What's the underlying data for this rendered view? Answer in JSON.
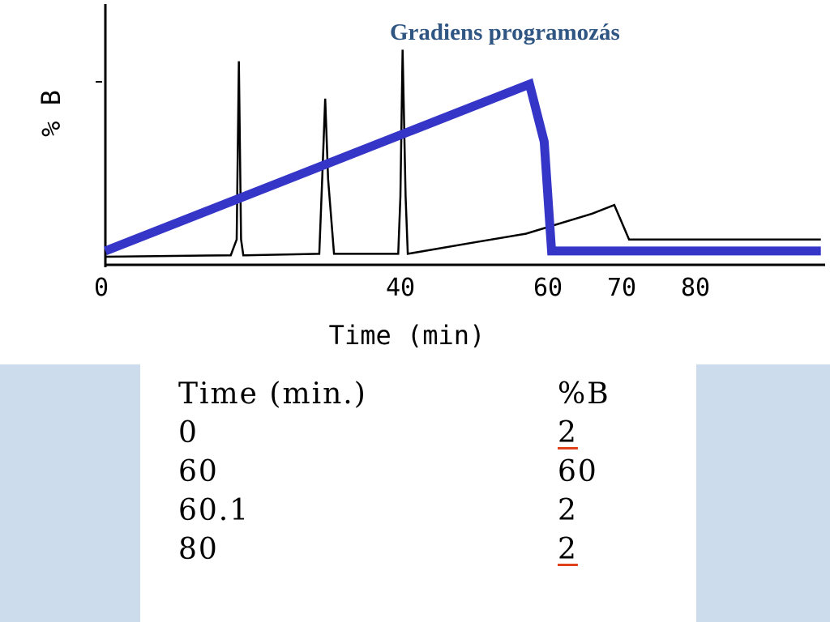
{
  "title": "Gradiens programozás",
  "chart_data": {
    "type": "line",
    "title": "Gradiens programozás",
    "xlabel": "Time (min)",
    "ylabel": "% B",
    "x_ticks": [
      "0",
      "40",
      "60",
      "70",
      "80"
    ],
    "xlim": [
      0,
      97
    ],
    "series": [
      {
        "x": [
          0,
          57.5,
          59.5,
          60.5,
          97
        ],
        "y": [
          2,
          60,
          40,
          2,
          2
        ],
        "color": "#3535c8"
      },
      {
        "x": [
          0,
          17,
          17.8,
          18.1,
          18.4,
          18.7,
          19,
          29,
          29.4,
          29.8,
          30.2,
          31,
          39.7,
          40,
          40.3,
          40.7,
          41,
          50,
          57,
          66,
          69,
          70,
          71,
          97
        ],
        "y": [
          0,
          0.5,
          6,
          68,
          6,
          0.5,
          0.5,
          1,
          27,
          55,
          27,
          1,
          1,
          21,
          72,
          21,
          1,
          5,
          8,
          15,
          18,
          12,
          6,
          6
        ],
        "color": "#000000"
      }
    ],
    "grid": false,
    "legend": "none"
  },
  "table": {
    "headers": [
      "Time (min.)",
      "%B"
    ],
    "rows": [
      [
        "0",
        "2"
      ],
      [
        "60",
        "60"
      ],
      [
        "60.1",
        "2"
      ],
      [
        "80",
        "2"
      ]
    ]
  }
}
